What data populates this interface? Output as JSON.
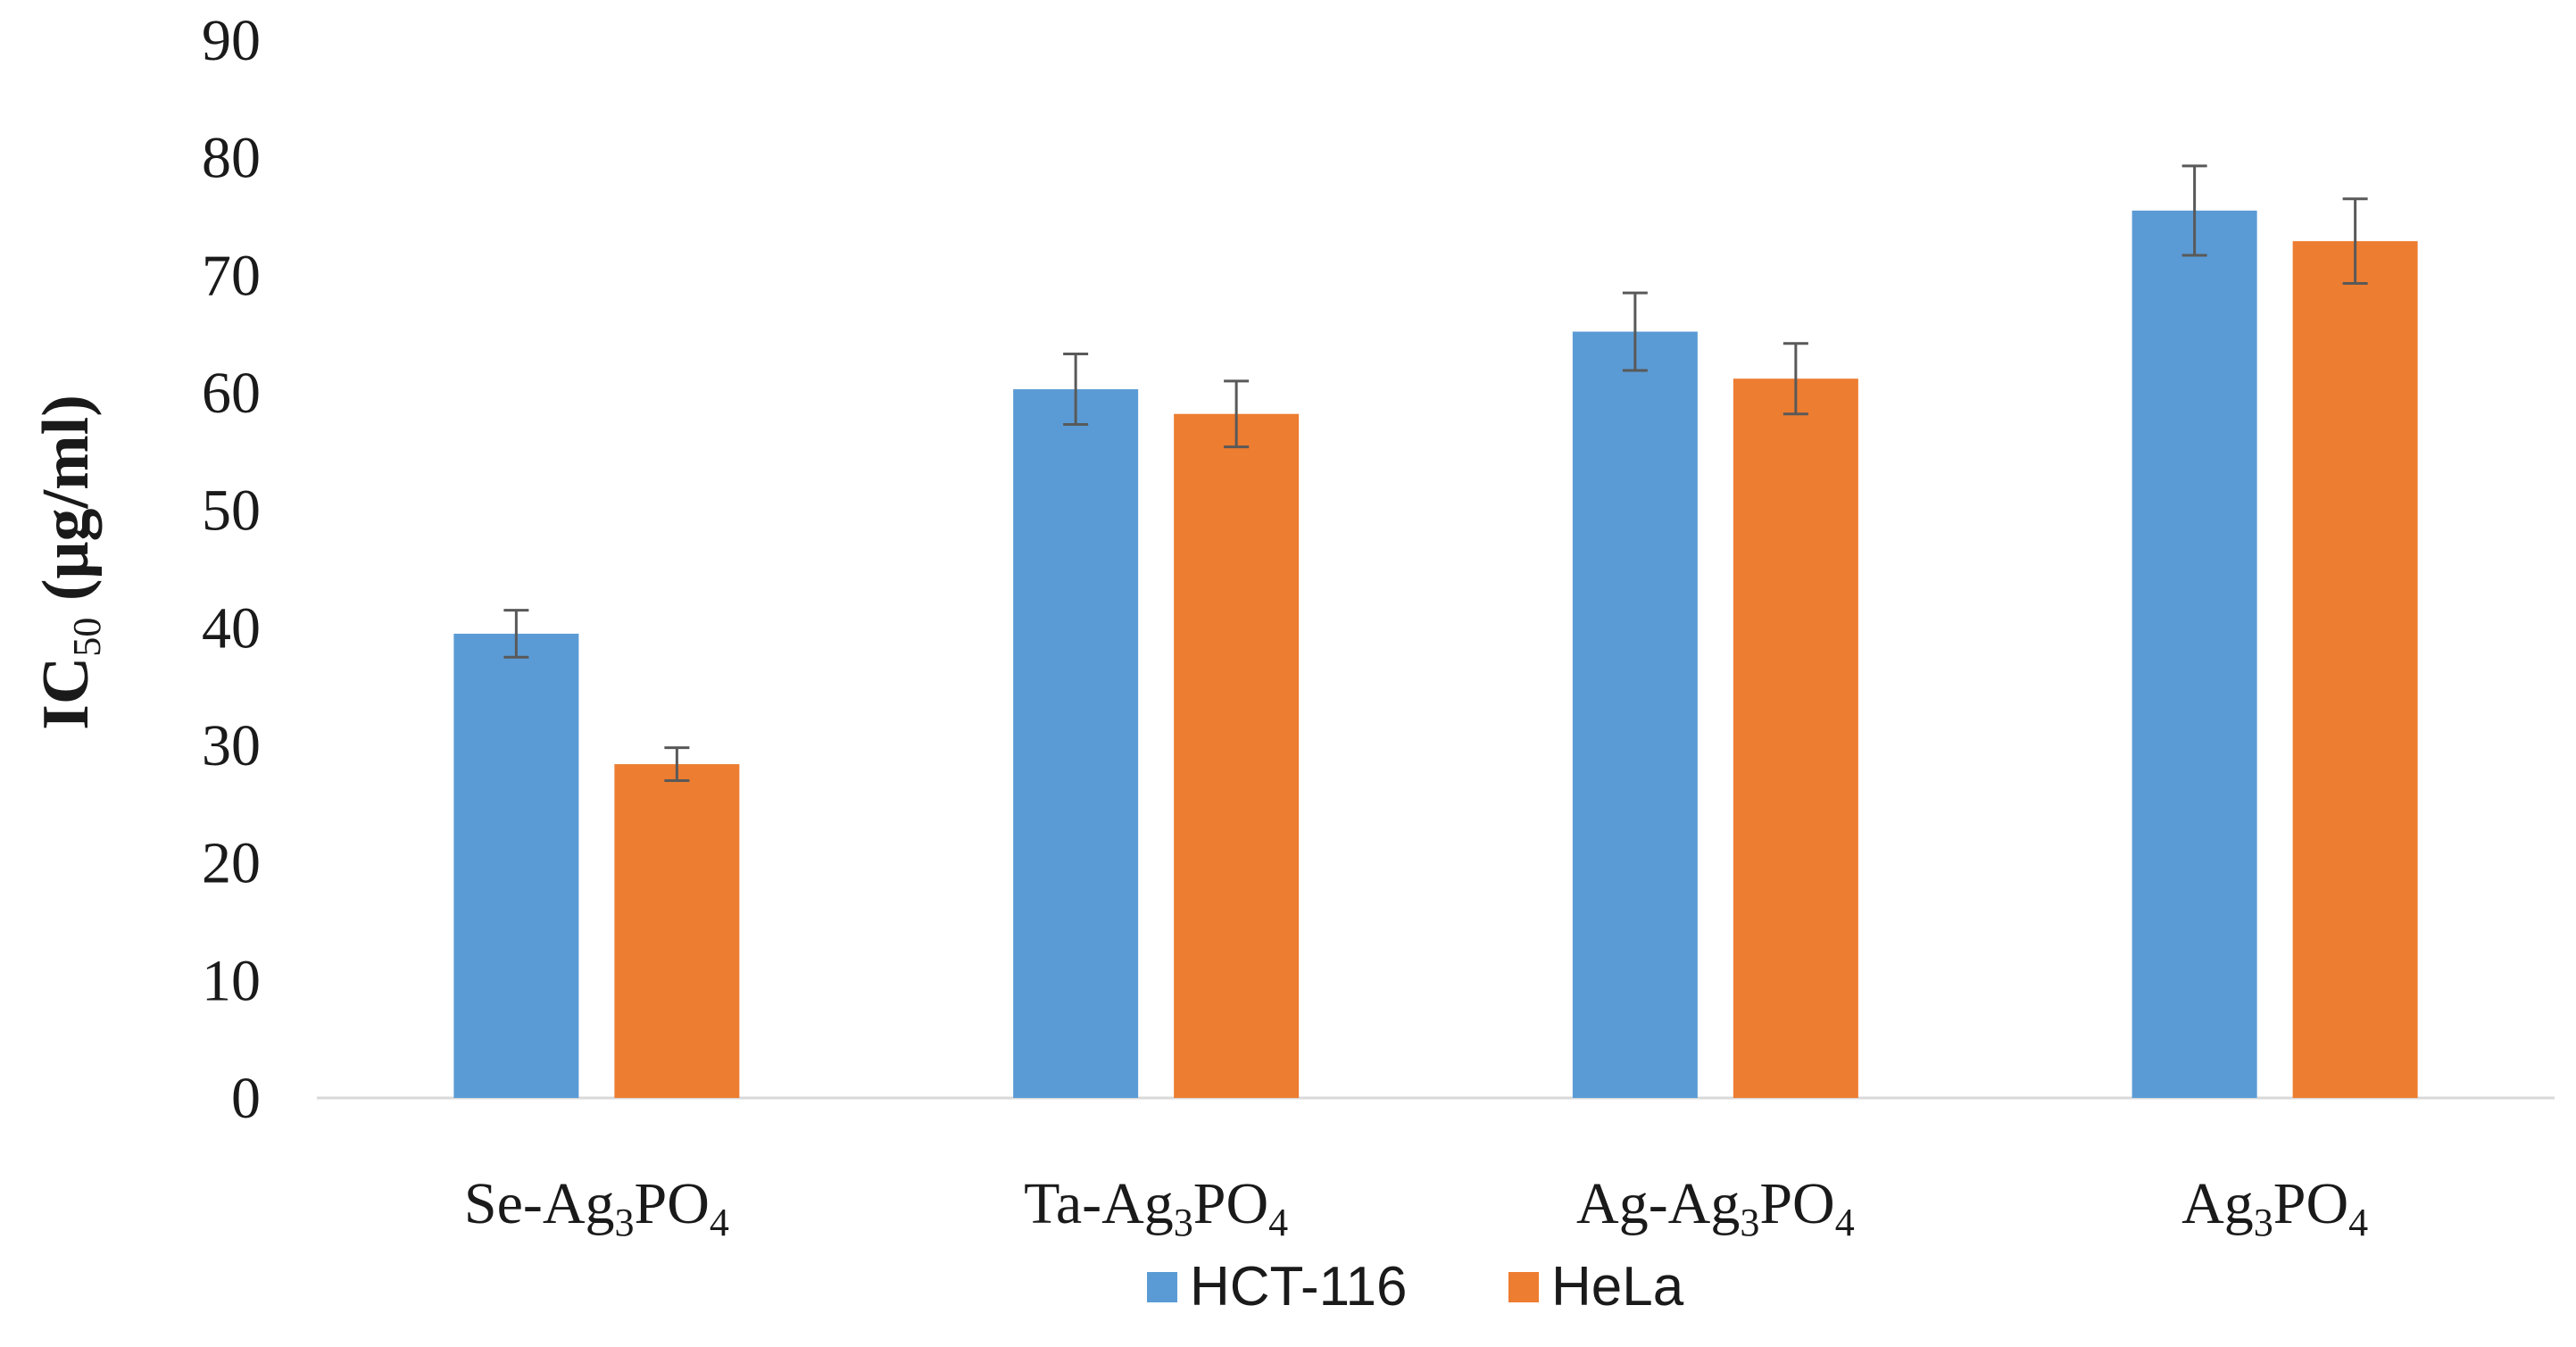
{
  "chart_data": {
    "type": "bar",
    "title": "",
    "xlabel": "",
    "ylabel": {
      "main": "IC",
      "sub": "50",
      "unit": " (μg/ml)"
    },
    "ylim": [
      0,
      90
    ],
    "ytick_step": 10,
    "grid": false,
    "legend_position": "bottom",
    "categories": [
      {
        "parts": [
          "Se-Ag",
          "3",
          "PO",
          "4"
        ]
      },
      {
        "parts": [
          "Ta-Ag",
          "3",
          "PO",
          "4"
        ]
      },
      {
        "parts": [
          "Ag-Ag",
          "3",
          "PO",
          "4"
        ]
      },
      {
        "parts": [
          "Ag",
          "3",
          "PO",
          "4"
        ]
      }
    ],
    "series": [
      {
        "name": "HCT-116",
        "color": "#5b9bd5",
        "values": [
          39.5,
          60.3,
          65.2,
          75.5
        ],
        "errors": [
          2.0,
          3.0,
          3.3,
          3.8
        ]
      },
      {
        "name": "HeLa",
        "color": "#ed7d31",
        "values": [
          28.4,
          58.2,
          61.2,
          72.9
        ],
        "errors": [
          1.4,
          2.8,
          3.0,
          3.6
        ]
      }
    ]
  }
}
